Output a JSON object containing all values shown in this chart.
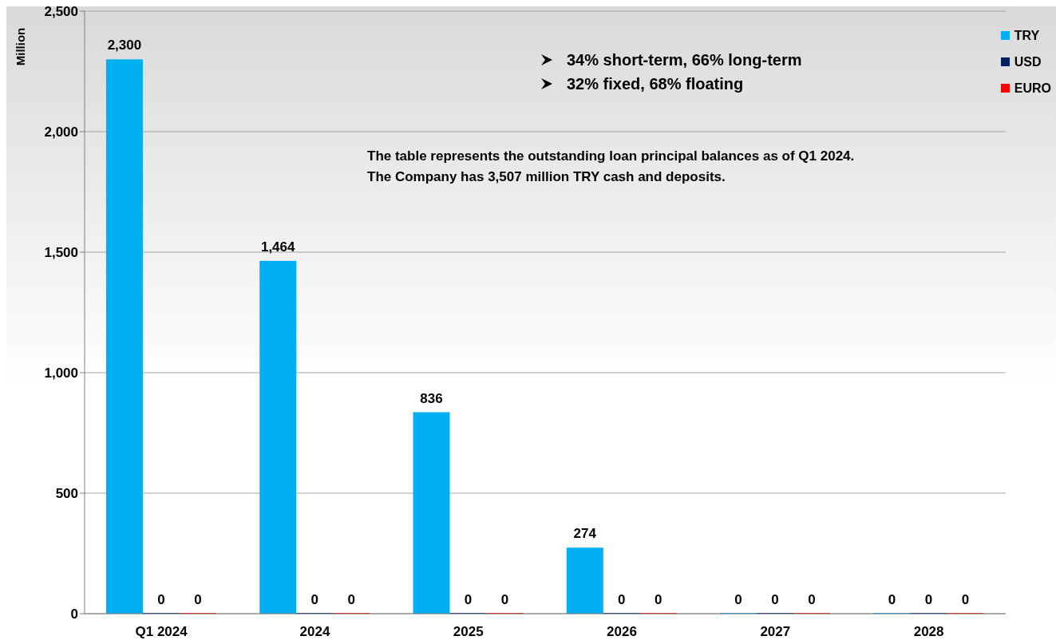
{
  "chart_data": {
    "type": "bar",
    "ylabel": "Million",
    "categories": [
      "Q1 2024",
      "2024",
      "2025",
      "2026",
      "2027",
      "2028"
    ],
    "series": [
      {
        "name": "TRY",
        "color": "#00b0f0",
        "values": [
          2300,
          1464,
          836,
          274,
          0,
          0
        ],
        "value_labels": [
          "2,300",
          "1,464",
          "836",
          "274",
          "0",
          "0"
        ]
      },
      {
        "name": "USD",
        "color": "#002060",
        "values": [
          0,
          0,
          0,
          0,
          0,
          0
        ],
        "value_labels": [
          "0",
          "0",
          "0",
          "0",
          "0",
          "0"
        ]
      },
      {
        "name": "EURO",
        "color": "#ff0000",
        "values": [
          0,
          0,
          0,
          0,
          0,
          0
        ],
        "value_labels": [
          "0",
          "0",
          "0",
          "0",
          "0",
          "0"
        ]
      }
    ],
    "ylim": [
      0,
      2500
    ],
    "yticks": [
      0,
      500,
      {
        "value": 1000,
        "label": "1,000"
      },
      {
        "value": 1500,
        "label": "1,500"
      },
      {
        "value": 2000,
        "label": "2,000"
      },
      {
        "value": 2500,
        "label": "2,500"
      }
    ],
    "grid": "y",
    "legend": "top right",
    "annotations": [
      "34% short-term, 66% long-term",
      "32% fixed, 68% floating",
      "The table represents the outstanding loan principal balances as of Q1 2024.",
      "The Company has 3,507 million TRY cash and deposits."
    ]
  }
}
